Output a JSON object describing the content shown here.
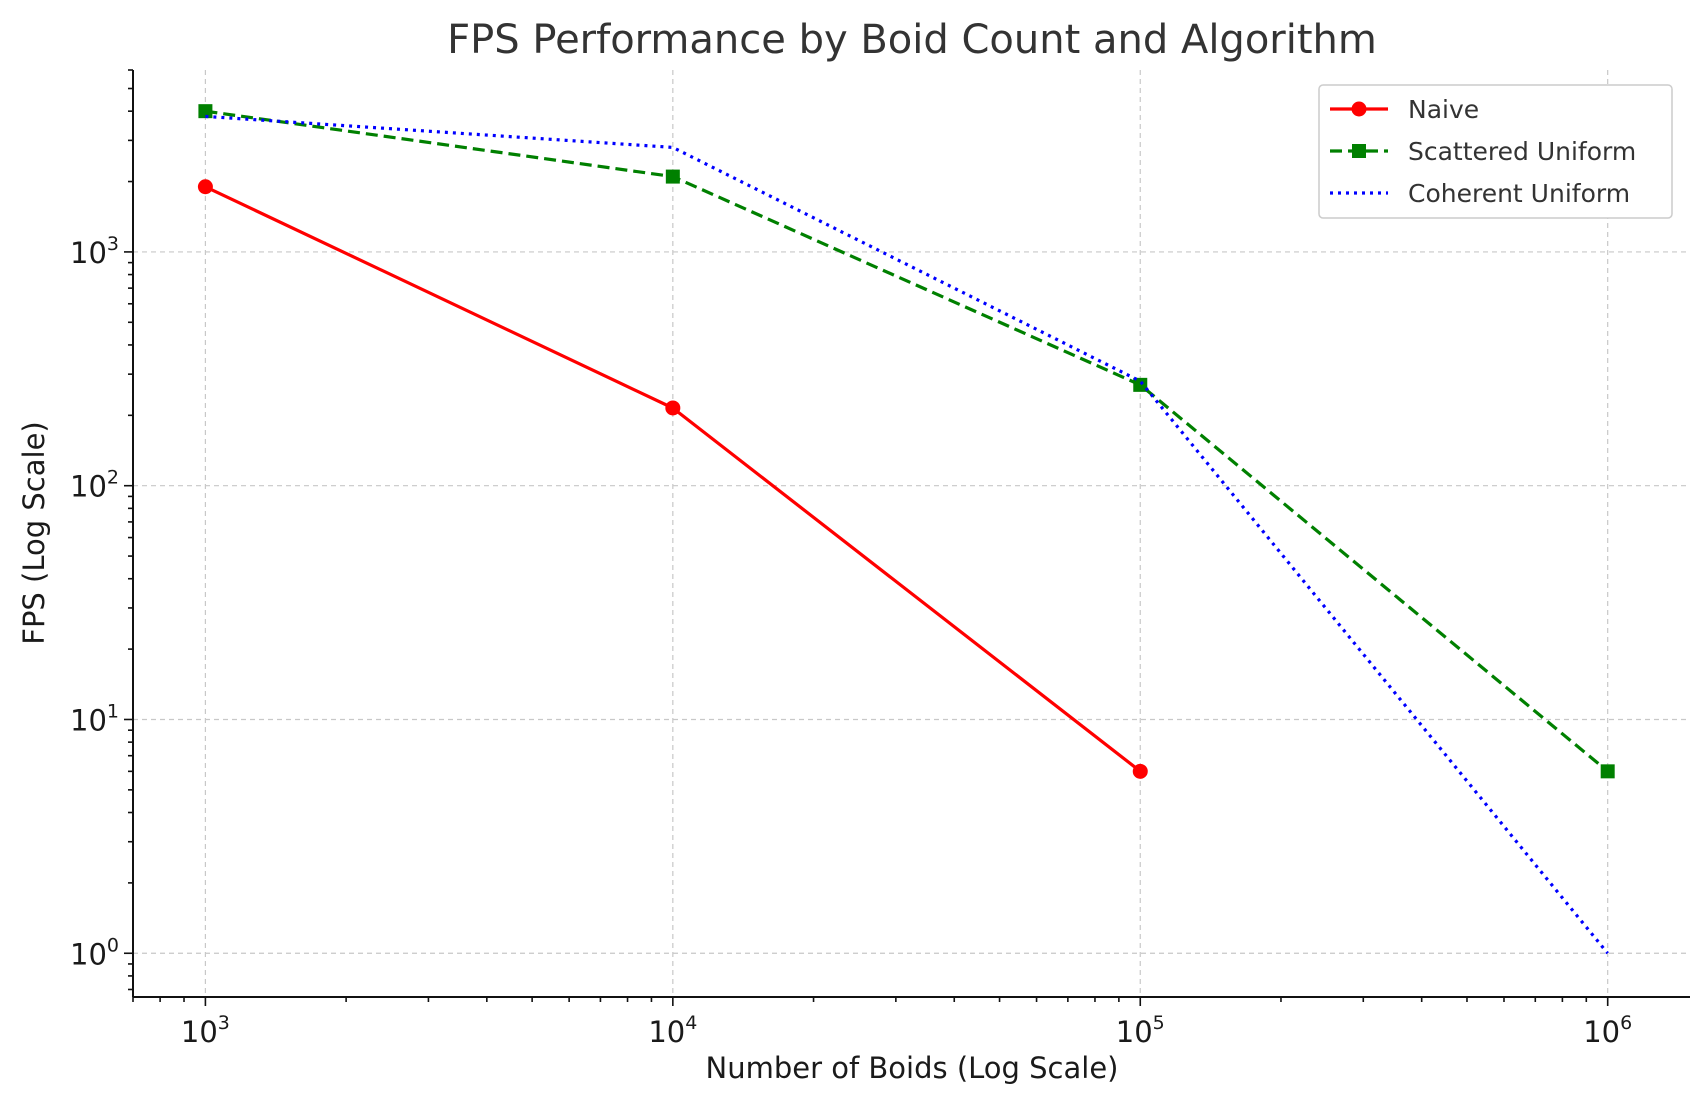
{
  "chart_data": {
    "type": "line",
    "title": "FPS Performance by Boid Count and Algorithm",
    "xlabel": "Number of Boids (Log Scale)",
    "ylabel": "FPS (Log Scale)",
    "xscale": "log",
    "yscale": "log",
    "xlim": [
      700,
      1500000
    ],
    "ylim": [
      0.65,
      6000
    ],
    "x_ticks": [
      {
        "value": 1000,
        "base": "10",
        "exp": "3"
      },
      {
        "value": 10000,
        "base": "10",
        "exp": "4"
      },
      {
        "value": 100000,
        "base": "10",
        "exp": "5"
      },
      {
        "value": 1000000,
        "base": "10",
        "exp": "6"
      }
    ],
    "y_ticks": [
      {
        "value": 1,
        "base": "10",
        "exp": "0"
      },
      {
        "value": 10,
        "base": "10",
        "exp": "1"
      },
      {
        "value": 100,
        "base": "10",
        "exp": "2"
      },
      {
        "value": 1000,
        "base": "10",
        "exp": "3"
      }
    ],
    "grid": true,
    "legend_position": "top-right",
    "series": [
      {
        "name": "Naive",
        "color": "#ff0000",
        "line": "solid",
        "marker": "circle",
        "x": [
          1000,
          10000,
          100000
        ],
        "y": [
          1900,
          215,
          6
        ]
      },
      {
        "name": "Scattered Uniform",
        "color": "#008000",
        "line": "dashed",
        "marker": "square",
        "x": [
          1000,
          10000,
          100000,
          1000000
        ],
        "y": [
          4000,
          2100,
          270,
          6
        ]
      },
      {
        "name": "Coherent Uniform",
        "color": "#0000ff",
        "line": "dotted",
        "marker": "none",
        "x": [
          1000,
          10000,
          100000,
          1000000
        ],
        "y": [
          3800,
          2800,
          280,
          1
        ]
      }
    ]
  }
}
